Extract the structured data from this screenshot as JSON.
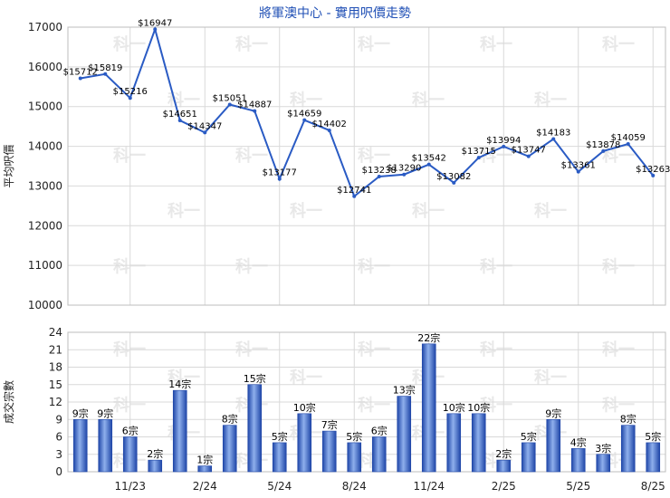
{
  "chart_data": [
    {
      "type": "line",
      "title": "將軍澳中心 - 實用呎價走勢",
      "ylabel": "平均呎價",
      "ylim": [
        10000,
        17000
      ],
      "yticks": [
        10000,
        11000,
        12000,
        13000,
        14000,
        15000,
        16000,
        17000
      ],
      "grid": true,
      "label_prefix": "$",
      "values": [
        15712,
        15819,
        15216,
        16947,
        14651,
        14347,
        15051,
        14887,
        13177,
        14659,
        14402,
        12741,
        13238,
        13290,
        13542,
        13082,
        13715,
        13994,
        13747,
        14183,
        13361,
        13878,
        14059,
        13263
      ]
    },
    {
      "type": "bar",
      "ylabel": "成交宗數",
      "ylim": [
        0,
        24
      ],
      "yticks": [
        0,
        3,
        6,
        9,
        12,
        15,
        18,
        21,
        24
      ],
      "grid": true,
      "label_suffix": "宗",
      "x_tick_labels": [
        {
          "index": 2.5,
          "label": "11/23"
        },
        {
          "index": 5.5,
          "label": "2/24"
        },
        {
          "index": 8.5,
          "label": "5/24"
        },
        {
          "index": 11.5,
          "label": "8/24"
        },
        {
          "index": 14.5,
          "label": "11/24"
        },
        {
          "index": 17.5,
          "label": "2/25"
        },
        {
          "index": 20.5,
          "label": "5/25"
        },
        {
          "index": 23.5,
          "label": "8/25"
        }
      ],
      "values": [
        9,
        9,
        6,
        2,
        14,
        1,
        8,
        15,
        5,
        10,
        7,
        5,
        6,
        13,
        22,
        10,
        10,
        2,
        5,
        9,
        4,
        3,
        8,
        5
      ]
    }
  ],
  "watermark": "科一",
  "colors": {
    "line": "#2a5bc4",
    "grid": "#d9d9d9",
    "title": "#1f4fb5",
    "bar_dark": "#1f46a8",
    "bar_light": "#8fb0ec"
  }
}
